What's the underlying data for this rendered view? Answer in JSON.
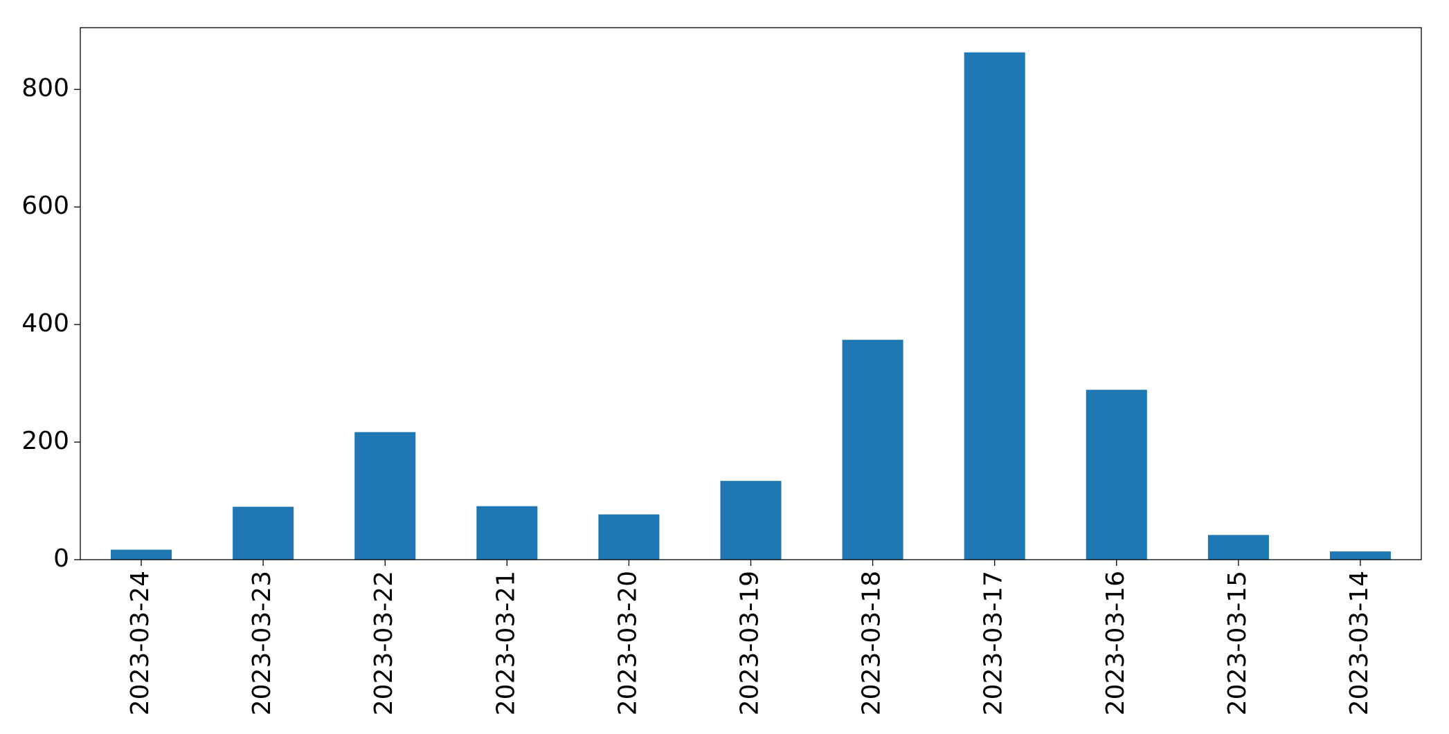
{
  "chart_data": {
    "type": "bar",
    "categories": [
      "2023-03-24",
      "2023-03-23",
      "2023-03-22",
      "2023-03-21",
      "2023-03-20",
      "2023-03-19",
      "2023-03-18",
      "2023-03-17",
      "2023-03-16",
      "2023-03-15",
      "2023-03-14"
    ],
    "values": [
      17,
      90,
      217,
      91,
      77,
      134,
      374,
      863,
      289,
      42,
      14
    ],
    "color": "#1f77b4",
    "ylim": [
      0,
      905
    ],
    "yticks": [
      0,
      200,
      400,
      600,
      800
    ],
    "grid": false
  }
}
